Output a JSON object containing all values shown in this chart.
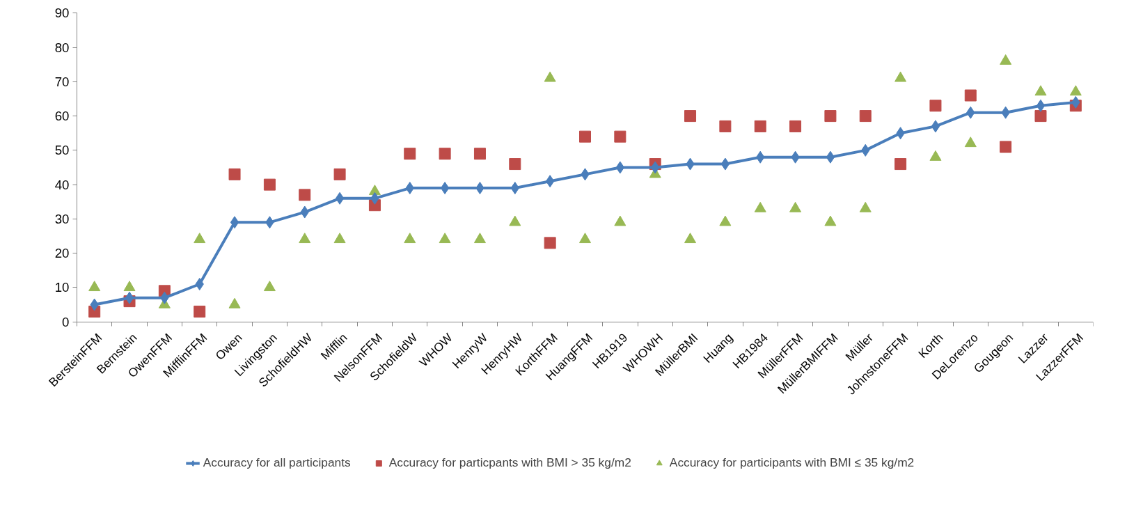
{
  "chart_data": {
    "type": "line",
    "categories": [
      "BersteinFFM",
      "Bernstein",
      "OwenFFM",
      "MifflinFFM",
      "Owen",
      "Livingston",
      "SchofieldHW",
      "Mifflin",
      "NelsonFFM",
      "SchofieldW",
      "WHOW",
      "HenryW",
      "HenryHW",
      "KorthFFM",
      "HuangFFM",
      "HB1919",
      "WHOWH",
      "MüllerBMI",
      "Huang",
      "HB1984",
      "MüllerFFM",
      "MüllerBMIFFM",
      "Müller",
      "JohnstoneFFM",
      "Korth",
      "DeLorenzo",
      "Gougeon",
      "Lazzer",
      "LazzerFFM"
    ],
    "series": [
      {
        "name": "Accuracy for all participants",
        "marker": "diamond",
        "color": "#4a7ebb",
        "values": [
          5,
          7,
          7,
          11,
          29,
          29,
          32,
          36,
          36,
          39,
          39,
          39,
          39,
          41,
          43,
          45,
          45,
          46,
          46,
          48,
          48,
          48,
          50,
          55,
          57,
          61,
          61,
          63,
          64
        ]
      },
      {
        "name": "Accuracy for particpants with BMI > 35 kg/m2",
        "type": "scatter",
        "marker": "square",
        "color": "#be4b48",
        "values": [
          3,
          6,
          9,
          3,
          43,
          40,
          37,
          43,
          34,
          49,
          49,
          49,
          46,
          23,
          54,
          54,
          46,
          60,
          57,
          57,
          57,
          60,
          60,
          46,
          63,
          66,
          51,
          60,
          63
        ]
      },
      {
        "name": "Accuracy for participants with BMI ≤ 35 kg/m2",
        "type": "scatter",
        "marker": "triangle",
        "color": "#98b954",
        "values": [
          10,
          10,
          5,
          24,
          5,
          10,
          24,
          24,
          38,
          24,
          24,
          24,
          29,
          71,
          24,
          29,
          43,
          24,
          29,
          33,
          33,
          29,
          33,
          71,
          48,
          52,
          76,
          67,
          67
        ]
      }
    ],
    "ylim": [
      0,
      90
    ],
    "yticks": [
      0,
      10,
      20,
      30,
      40,
      50,
      60,
      70,
      80,
      90
    ],
    "grid": false,
    "legend": "bottom"
  }
}
